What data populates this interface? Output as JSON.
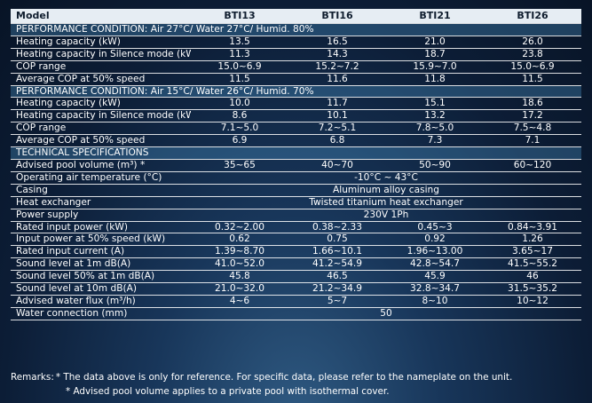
{
  "table": {
    "header": {
      "model_label": "Model",
      "models": [
        "BTI13",
        "BTI16",
        "BTI21",
        "BTI26"
      ]
    },
    "sections": [
      {
        "title": "PERFORMANCE CONDITION: Air 27°C/ Water 27°C/ Humid. 80%",
        "rows": [
          {
            "label": "Heating capacity (kW)",
            "values": [
              "13.5",
              "16.5",
              "21.0",
              "26.0"
            ]
          },
          {
            "label": "Heating capacity in Silence mode  (kW)",
            "values": [
              "11.3",
              "14.3",
              "18.7",
              "23.8"
            ]
          },
          {
            "label": "COP range",
            "values": [
              "15.0~6.9",
              "15.2~7.2",
              "15.9~7.0",
              "15.0~6.9"
            ]
          },
          {
            "label": "Average COP at 50% speed",
            "values": [
              "11.5",
              "11.6",
              "11.8",
              "11.5"
            ]
          }
        ]
      },
      {
        "title": "PERFORMANCE CONDITION: Air 15°C/ Water 26°C/ Humid. 70%",
        "rows": [
          {
            "label": "Heating capacity  (kW)",
            "values": [
              "10.0",
              "11.7",
              "15.1",
              "18.6"
            ]
          },
          {
            "label": "Heating capacity in Silence mode  (kW)",
            "values": [
              "8.6",
              "10.1",
              "13.2",
              "17.2"
            ]
          },
          {
            "label": "COP range",
            "values": [
              "7.1~5.0",
              "7.2~5.1",
              "7.8~5.0",
              "7.5~4.8"
            ]
          },
          {
            "label": "Average COP at 50% speed",
            "values": [
              "6.9",
              "6.8",
              "7.3",
              "7.1"
            ]
          }
        ]
      },
      {
        "title": "TECHNICAL SPECIFICATIONS",
        "rows": [
          {
            "label": "Advised pool volume  (m³) *",
            "values": [
              "35~65",
              "40~70",
              "50~90",
              "60~120"
            ]
          },
          {
            "label": "Operating air temperature  (°C)",
            "span": "-10°C ~ 43°C"
          },
          {
            "label": "Casing",
            "span": "Aluminum alloy casing"
          },
          {
            "label": "Heat exchanger",
            "span": "Twisted titanium heat exchanger"
          },
          {
            "label": "Power supply",
            "span": "230V 1Ph"
          },
          {
            "label": "Rated input power  (kW)",
            "values": [
              "0.32~2.00",
              "0.38~2.33",
              "0.45~3",
              "0.84~3.91"
            ]
          },
          {
            "label": "Input power at 50% speed  (kW)",
            "values": [
              "0.62",
              "0.75",
              "0.92",
              "1.26"
            ]
          },
          {
            "label": "Rated input current  (A)",
            "values": [
              "1.39~8.70",
              "1.66~10.1",
              "1.96~13.00",
              "3.65~17"
            ]
          },
          {
            "label": "Sound level  at 1m  dB(A)",
            "values": [
              "41.0~52.0",
              "41.2~54.9",
              "42.8~54.7",
              "41.5~55.2"
            ]
          },
          {
            "label": "Sound level  50% at 1m  dB(A)",
            "values": [
              "45.8",
              "46.5",
              "45.9",
              "46"
            ]
          },
          {
            "label": "Sound level  at 10m  dB(A)",
            "values": [
              "21.0~32.0",
              "21.2~34.9",
              "32.8~34.7",
              "31.5~35.2"
            ]
          },
          {
            "label": "Advised water flux  (m³/h)",
            "values": [
              "4~6",
              "5~7",
              "8~10",
              "10~12"
            ]
          },
          {
            "label": "Water connection  (mm)",
            "span": "50"
          }
        ]
      }
    ]
  },
  "remarks": {
    "label": "Remarks:",
    "lines": [
      "* The data above is only for reference. For specific data, please refer to the nameplate on the unit.",
      "* Advised pool volume applies to a private pool with isothermal cover."
    ]
  }
}
